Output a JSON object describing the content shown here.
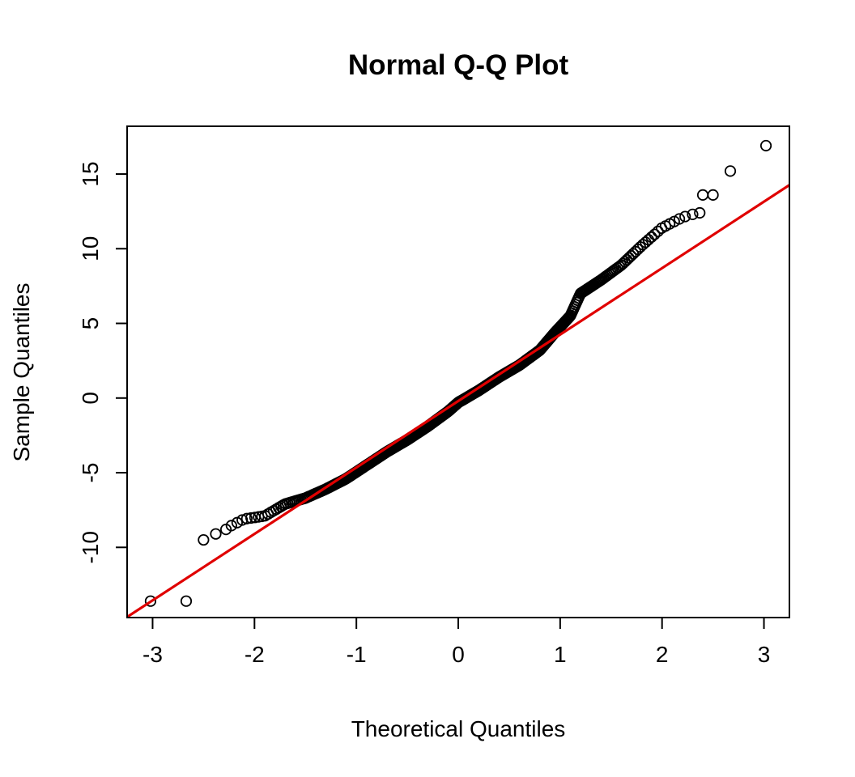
{
  "chart_data": {
    "type": "scatter",
    "title": "Normal Q-Q Plot",
    "xlabel": "Theoretical Quantiles",
    "ylabel": "Sample Quantiles",
    "xlim": [
      -3.25,
      3.25
    ],
    "ylim": [
      -14.7,
      18.2
    ],
    "x_ticks": [
      -3,
      -2,
      -1,
      0,
      1,
      2,
      3
    ],
    "y_ticks": [
      -10,
      -5,
      0,
      5,
      10,
      15
    ],
    "grid": false,
    "legend": "none",
    "point_color": "#000000",
    "line_color": "#e00000",
    "reference_line": {
      "intercept": -0.2,
      "slope": 4.45
    },
    "curve_knots": [
      [
        -3.0,
        -13.6
      ],
      [
        -2.67,
        -13.6
      ],
      [
        -2.5,
        -9.5
      ],
      [
        -2.3,
        -8.8
      ],
      [
        -2.1,
        -8.1
      ],
      [
        -1.9,
        -7.9
      ],
      [
        -1.7,
        -7.1
      ],
      [
        -1.5,
        -6.7
      ],
      [
        -1.3,
        -6.1
      ],
      [
        -1.1,
        -5.4
      ],
      [
        -0.9,
        -4.5
      ],
      [
        -0.7,
        -3.6
      ],
      [
        -0.5,
        -2.8
      ],
      [
        -0.3,
        -1.9
      ],
      [
        -0.1,
        -0.9
      ],
      [
        0.0,
        -0.3
      ],
      [
        0.2,
        0.5
      ],
      [
        0.4,
        1.4
      ],
      [
        0.6,
        2.2
      ],
      [
        0.8,
        3.2
      ],
      [
        0.95,
        4.4
      ],
      [
        1.1,
        5.5
      ],
      [
        1.2,
        7.0
      ],
      [
        1.4,
        7.9
      ],
      [
        1.6,
        8.9
      ],
      [
        1.8,
        10.2
      ],
      [
        2.0,
        11.4
      ],
      [
        2.2,
        12.1
      ],
      [
        2.35,
        12.4
      ],
      [
        2.48,
        13.6
      ],
      [
        2.67,
        15.2
      ],
      [
        3.02,
        16.9
      ]
    ],
    "extreme_points": [
      [
        -3.02,
        -13.6
      ],
      [
        -2.67,
        -13.6
      ],
      [
        -2.5,
        -9.5
      ],
      [
        -2.38,
        -9.1
      ],
      [
        -2.28,
        -8.8
      ],
      [
        2.3,
        12.3
      ],
      [
        2.37,
        12.4
      ],
      [
        2.4,
        13.6
      ],
      [
        2.5,
        13.6
      ],
      [
        2.67,
        15.2
      ],
      [
        3.02,
        16.9
      ]
    ],
    "sample_size": 500
  }
}
